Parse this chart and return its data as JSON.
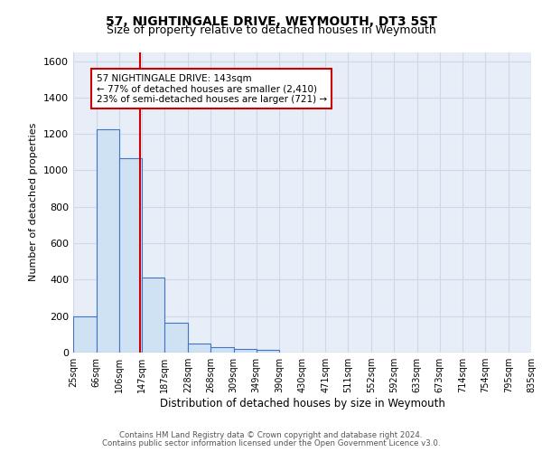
{
  "title1": "57, NIGHTINGALE DRIVE, WEYMOUTH, DT3 5ST",
  "title2": "Size of property relative to detached houses in Weymouth",
  "xlabel": "Distribution of detached houses by size in Weymouth",
  "ylabel": "Number of detached properties",
  "bin_labels": [
    "25sqm",
    "66sqm",
    "106sqm",
    "147sqm",
    "187sqm",
    "228sqm",
    "268sqm",
    "309sqm",
    "349sqm",
    "390sqm",
    "430sqm",
    "471sqm",
    "511sqm",
    "552sqm",
    "592sqm",
    "633sqm",
    "673sqm",
    "714sqm",
    "754sqm",
    "795sqm",
    "835sqm"
  ],
  "bin_edges": [
    25,
    66,
    106,
    147,
    187,
    228,
    268,
    309,
    349,
    390,
    430,
    471,
    511,
    552,
    592,
    633,
    673,
    714,
    754,
    795,
    835
  ],
  "bar_heights": [
    200,
    1225,
    1065,
    410,
    165,
    50,
    28,
    20,
    15,
    0,
    0,
    0,
    0,
    0,
    0,
    0,
    0,
    0,
    0,
    0
  ],
  "bar_color": "#cfe2f3",
  "bar_edge_color": "#4472c4",
  "red_line_x": 143,
  "ylim": [
    0,
    1650
  ],
  "yticks": [
    0,
    200,
    400,
    600,
    800,
    1000,
    1200,
    1400,
    1600
  ],
  "annotation_text": "57 NIGHTINGALE DRIVE: 143sqm\n← 77% of detached houses are smaller (2,410)\n23% of semi-detached houses are larger (721) →",
  "annotation_box_color": "#ffffff",
  "annotation_box_edge_color": "#cc0000",
  "footer1": "Contains HM Land Registry data © Crown copyright and database right 2024.",
  "footer2": "Contains public sector information licensed under the Open Government Licence v3.0.",
  "grid_color": "#d0d8e8",
  "background_color": "#e8eef8"
}
